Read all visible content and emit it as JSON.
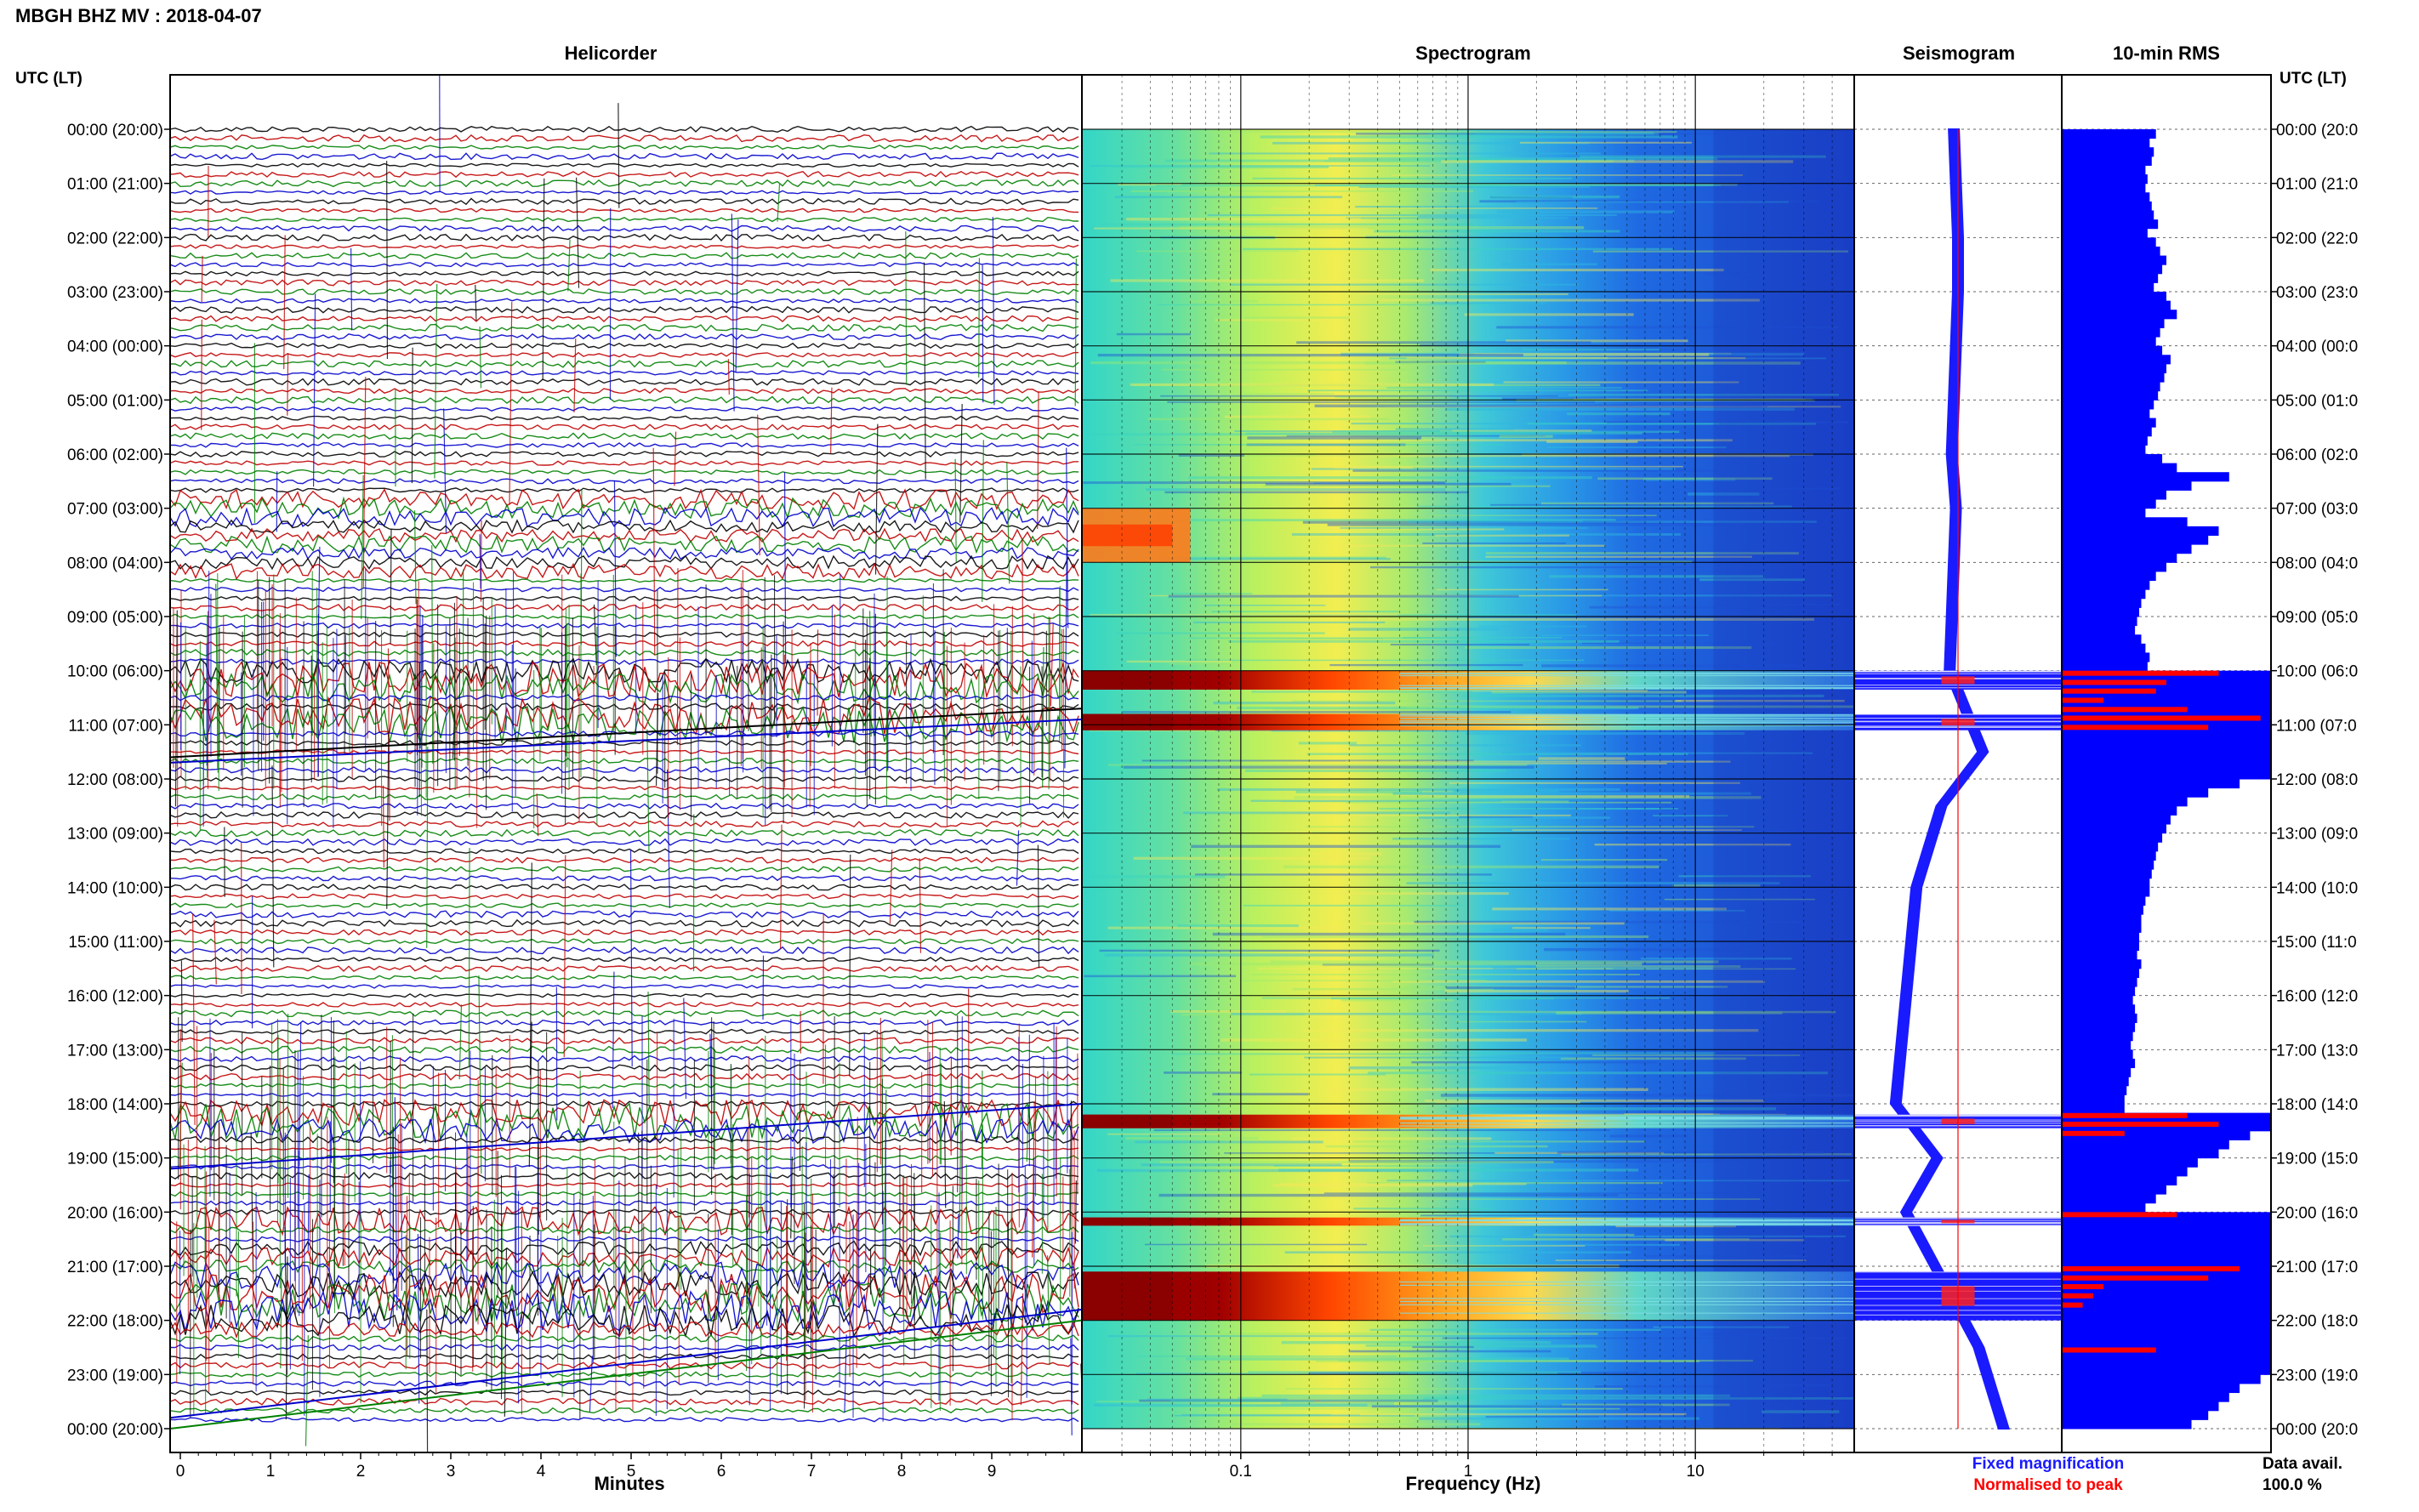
{
  "title": "MBGH BHZ MV : 2018-04-07",
  "panels": {
    "helicorder": "Helicorder",
    "spectrogram": "Spectrogram",
    "seismogram": "Seismogram",
    "rms": "10-min RMS"
  },
  "axis_header_left": "UTC (LT)",
  "axis_header_right": "UTC (LT)",
  "time_labels": [
    "00:00 (20:00)",
    "01:00 (21:00)",
    "02:00 (22:00)",
    "03:00 (23:00)",
    "04:00 (00:00)",
    "05:00 (01:00)",
    "06:00 (02:00)",
    "07:00 (03:00)",
    "08:00 (04:00)",
    "09:00 (05:00)",
    "10:00 (06:00)",
    "11:00 (07:00)",
    "12:00 (08:00)",
    "13:00 (09:00)",
    "14:00 (10:00)",
    "15:00 (11:00)",
    "16:00 (12:00)",
    "17:00 (13:00)",
    "18:00 (14:00)",
    "19:00 (15:00)",
    "20:00 (16:00)",
    "21:00 (17:00)",
    "22:00 (18:00)",
    "23:00 (19:00)",
    "00:00 (20:00)"
  ],
  "time_labels_right": [
    "00:00 (20:0",
    "01:00 (21:0",
    "02:00 (22:0",
    "03:00 (23:0",
    "04:00 (00:0",
    "05:00 (01:0",
    "06:00 (02:0",
    "07:00 (03:0",
    "08:00 (04:0",
    "09:00 (05:0",
    "10:00 (06:0",
    "11:00 (07:0",
    "12:00 (08:0",
    "13:00 (09:0",
    "14:00 (10:0",
    "15:00 (11:0",
    "16:00 (12:0",
    "17:00 (13:0",
    "18:00 (14:0",
    "19:00 (15:0",
    "20:00 (16:0",
    "21:00 (17:0",
    "22:00 (18:0",
    "23:00 (19:0",
    "00:00 (20:0"
  ],
  "x_minutes": {
    "label": "Minutes",
    "ticks": [
      "0",
      "1",
      "2",
      "3",
      "4",
      "5",
      "6",
      "7",
      "8",
      "9"
    ]
  },
  "x_frequency": {
    "label": "Frequency (Hz)",
    "ticks": [
      "0.1",
      "1",
      "10"
    ]
  },
  "legend": {
    "fixed": "Fixed magnification",
    "normalised": "Normalised to peak",
    "fixed_color": "#1a1aff",
    "normalised_color": "#ff0000"
  },
  "data_avail": {
    "label": "Data avail.",
    "value": "100.0 %"
  },
  "colors": {
    "trace_colors": [
      "#000000",
      "#c00000",
      "#008000",
      "#0000cc"
    ],
    "spectrogram_background": "#1e5ae6",
    "spectrogram_saturated": "#8b0000",
    "rms_fixed": "#0000ff",
    "rms_normalised": "#ff0000"
  },
  "chart_data": {
    "type": "heatmap",
    "station": "MBGH BHZ MV",
    "date": "2018-04-07",
    "time_range_utc_hours": [
      0,
      24
    ],
    "frequency_range_hz": [
      0.02,
      50
    ],
    "frequency_scale": "log",
    "minutes_range": [
      0,
      10
    ],
    "events_utc_hours": [
      {
        "start": 10.0,
        "end": 10.35,
        "intensity": "high"
      },
      {
        "start": 10.8,
        "end": 11.1,
        "intensity": "high"
      },
      {
        "start": 18.2,
        "end": 18.45,
        "intensity": "high"
      },
      {
        "start": 20.1,
        "end": 20.25,
        "intensity": "high"
      },
      {
        "start": 21.1,
        "end": 22.0,
        "intensity": "high"
      }
    ],
    "seismogram_envelope": [
      {
        "t": 0.0,
        "x": 0.48
      },
      {
        "t": 1.0,
        "x": 0.49
      },
      {
        "t": 2.0,
        "x": 0.5
      },
      {
        "t": 3.0,
        "x": 0.5
      },
      {
        "t": 4.0,
        "x": 0.49
      },
      {
        "t": 5.0,
        "x": 0.48
      },
      {
        "t": 6.0,
        "x": 0.47
      },
      {
        "t": 7.0,
        "x": 0.49
      },
      {
        "t": 8.0,
        "x": 0.48
      },
      {
        "t": 9.0,
        "x": 0.47
      },
      {
        "t": 10.0,
        "x": 0.46
      },
      {
        "t": 11.5,
        "x": 0.62
      },
      {
        "t": 12.5,
        "x": 0.42
      },
      {
        "t": 14.0,
        "x": 0.3
      },
      {
        "t": 16.0,
        "x": 0.25
      },
      {
        "t": 18.0,
        "x": 0.2
      },
      {
        "t": 19.0,
        "x": 0.4
      },
      {
        "t": 20.0,
        "x": 0.25
      },
      {
        "t": 22.5,
        "x": 0.6
      },
      {
        "t": 24.0,
        "x": 0.72
      }
    ],
    "rms_blocks_fraction": [
      0.45,
      0.42,
      0.44,
      0.43,
      0.4,
      0.41,
      0.4,
      0.42,
      0.43,
      0.44,
      0.46,
      0.41,
      0.45,
      0.47,
      0.5,
      0.48,
      0.46,
      0.44,
      0.5,
      0.52,
      0.55,
      0.49,
      0.47,
      0.45,
      0.48,
      0.52,
      0.5,
      0.49,
      0.47,
      0.46,
      0.44,
      0.42,
      0.45,
      0.43,
      0.41,
      0.4,
      0.48,
      0.55,
      0.8,
      0.62,
      0.5,
      0.45,
      0.4,
      0.6,
      0.75,
      0.7,
      0.62,
      0.55,
      0.5,
      0.45,
      0.42,
      0.4,
      0.38,
      0.37,
      0.36,
      0.35,
      0.38,
      0.4,
      0.42,
      0.41,
      1.0,
      1.0,
      1.0,
      1.0,
      1.0,
      1.0,
      1.0,
      1.0,
      1.0,
      1.0,
      1.0,
      1.0,
      0.85,
      0.7,
      0.6,
      0.55,
      0.52,
      0.5,
      0.48,
      0.46,
      0.45,
      0.44,
      0.43,
      0.42,
      0.42,
      0.4,
      0.39,
      0.38,
      0.38,
      0.37,
      0.37,
      0.36,
      0.38,
      0.37,
      0.36,
      0.35,
      0.34,
      0.35,
      0.36,
      0.35,
      0.34,
      0.33,
      0.34,
      0.35,
      0.33,
      0.32,
      0.31,
      0.3,
      0.3,
      1.0,
      1.0,
      0.9,
      0.8,
      0.75,
      0.65,
      0.6,
      0.55,
      0.5,
      0.45,
      0.4,
      1.0,
      1.0,
      1.0,
      1.0,
      1.0,
      1.0,
      1.0,
      1.0,
      1.0,
      1.0,
      1.0,
      1.0,
      1.0,
      1.0,
      1.0,
      1.0,
      1.0,
      1.0,
      0.95,
      0.85,
      0.8,
      0.75,
      0.7,
      0.62
    ],
    "rms_normalised_bars": [
      {
        "t": 10.0,
        "fraction": 0.75
      },
      {
        "t": 10.17,
        "fraction": 0.5
      },
      {
        "t": 10.33,
        "fraction": 0.45
      },
      {
        "t": 10.5,
        "fraction": 0.2
      },
      {
        "t": 10.67,
        "fraction": 0.6
      },
      {
        "t": 10.83,
        "fraction": 0.95
      },
      {
        "t": 11.0,
        "fraction": 0.7
      },
      {
        "t": 18.17,
        "fraction": 0.6
      },
      {
        "t": 18.33,
        "fraction": 0.75
      },
      {
        "t": 18.5,
        "fraction": 0.3
      },
      {
        "t": 20.0,
        "fraction": 0.55
      },
      {
        "t": 21.0,
        "fraction": 0.85
      },
      {
        "t": 21.17,
        "fraction": 0.7
      },
      {
        "t": 21.33,
        "fraction": 0.2
      },
      {
        "t": 21.5,
        "fraction": 0.15
      },
      {
        "t": 21.67,
        "fraction": 0.1
      },
      {
        "t": 22.5,
        "fraction": 0.45
      }
    ]
  }
}
